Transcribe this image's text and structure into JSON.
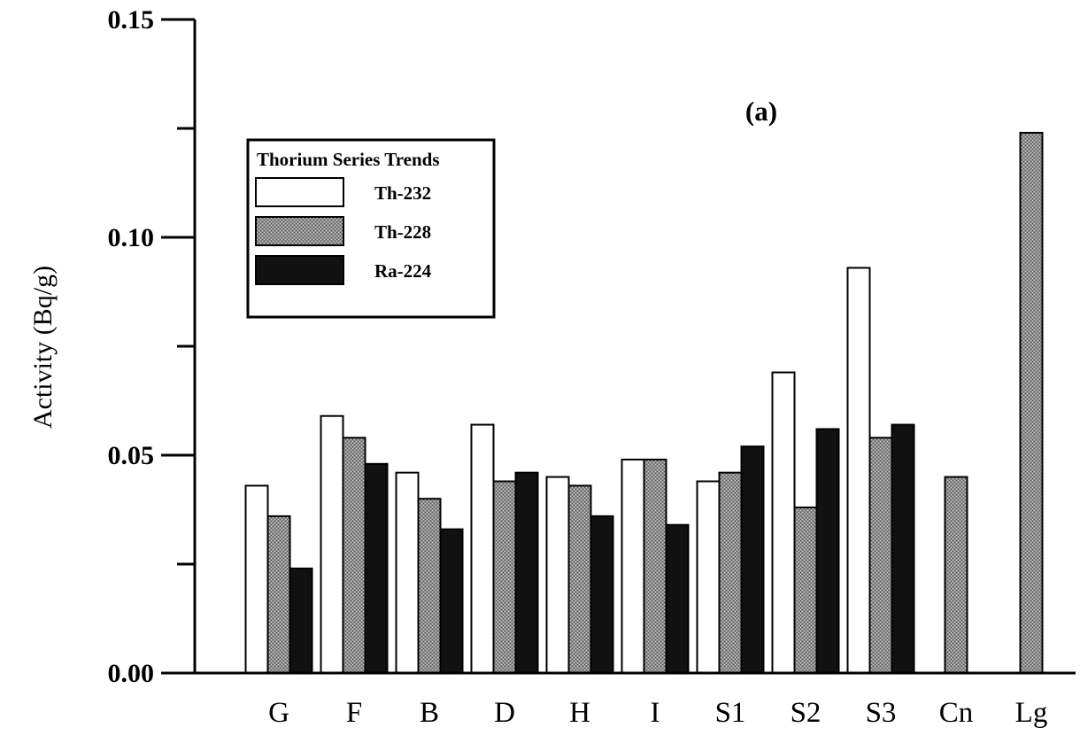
{
  "chart_data": {
    "type": "bar",
    "ylabel": "Activity (Bq/g)",
    "xlabel": "",
    "ylim": [
      0,
      0.15
    ],
    "yticks": [
      0.0,
      0.05,
      0.1,
      0.15
    ],
    "ytick_labels": [
      "0.00",
      "0.05",
      "0.10",
      "0.15"
    ],
    "yminor_ticks": [
      0.025,
      0.075,
      0.125
    ],
    "grid": false,
    "annotation": "(a)",
    "legend": {
      "title": "Thorium Series Trends",
      "placement": "top-left"
    },
    "categories": [
      "G",
      "F",
      "B",
      "D",
      "H",
      "I",
      "S1",
      "S2",
      "S3",
      "Cn",
      "Lg"
    ],
    "series": [
      {
        "name": "Th-232",
        "color": "#ffffff",
        "values": [
          0.043,
          0.059,
          0.046,
          0.057,
          0.045,
          0.049,
          0.044,
          0.069,
          0.093,
          null,
          null
        ]
      },
      {
        "name": "Th-228",
        "color": "#8c8c8c",
        "values": [
          0.036,
          0.054,
          0.04,
          0.044,
          0.043,
          0.049,
          0.046,
          0.038,
          0.054,
          0.045,
          0.124
        ]
      },
      {
        "name": "Ra-224",
        "color": "#111111",
        "values": [
          0.024,
          0.048,
          0.033,
          0.046,
          0.036,
          0.034,
          0.052,
          0.056,
          0.057,
          null,
          null
        ]
      }
    ]
  }
}
